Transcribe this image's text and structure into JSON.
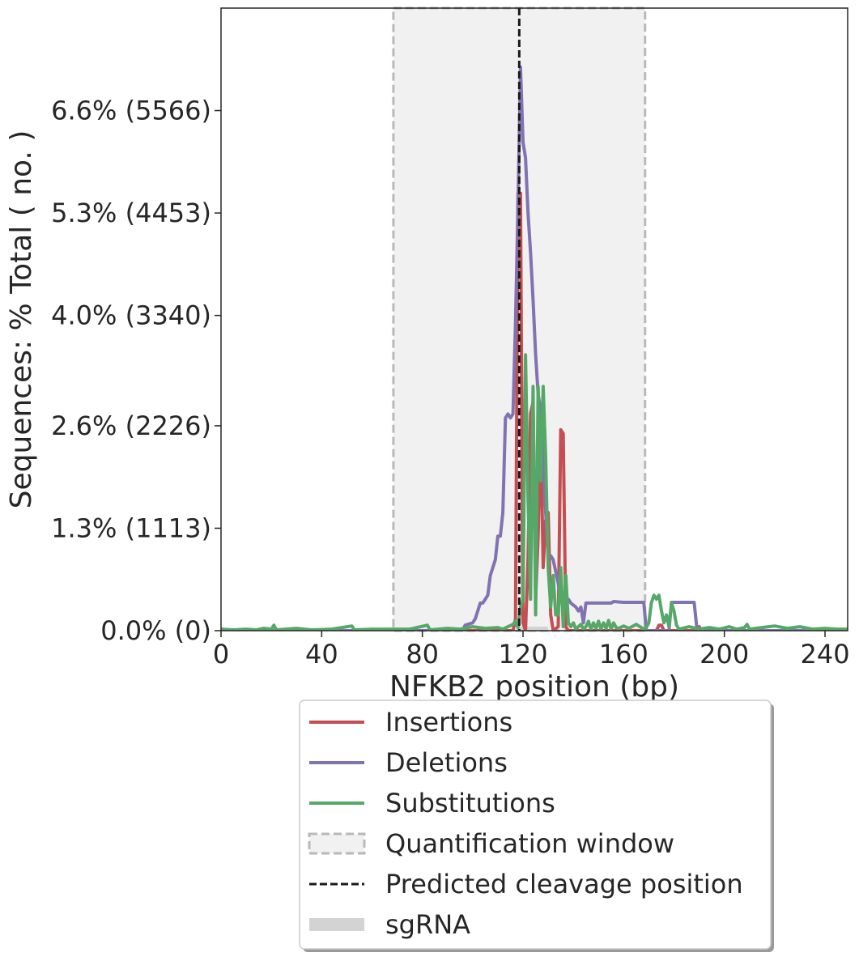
{
  "chart_data": {
    "type": "line",
    "xlabel": "NFKB2 position (bp)",
    "ylabel": "Sequences: % Total ( no. )",
    "xlim": [
      0,
      249
    ],
    "ylim": [
      0,
      7.9
    ],
    "x_ticks": [
      0,
      40,
      80,
      120,
      160,
      200,
      240
    ],
    "y_ticks": [
      {
        "value": 0.0,
        "label": "0.0% (0)"
      },
      {
        "value": 1.3,
        "label": "1.3% (1113)"
      },
      {
        "value": 2.6,
        "label": "2.6% (2226)"
      },
      {
        "value": 4.0,
        "label": "4.0% (3340)"
      },
      {
        "value": 5.3,
        "label": "5.3% (4453)"
      },
      {
        "value": 6.6,
        "label": "6.6% (5566)"
      }
    ],
    "quantification_window": [
      68.5,
      168.5
    ],
    "predicted_cleavage_position": 118.5,
    "sgrna": [
      118,
      130
    ],
    "legend_position": "below plot",
    "legend": [
      {
        "label": "Insertions",
        "kind": "line",
        "color": "#c44e52"
      },
      {
        "label": "Deletions",
        "kind": "line",
        "color": "#8172b2"
      },
      {
        "label": "Substitutions",
        "kind": "line",
        "color": "#55a868"
      },
      {
        "label": "Quantification window",
        "kind": "window"
      },
      {
        "label": "Predicted cleavage position",
        "kind": "dashed"
      },
      {
        "label": "sgRNA",
        "kind": "sgrna"
      }
    ],
    "series": [
      {
        "name": "Insertions",
        "color": "#c44e52",
        "points": [
          [
            0,
            0
          ],
          [
            116,
            0
          ],
          [
            117,
            0.15
          ],
          [
            118,
            5.55
          ],
          [
            119,
            5.55
          ],
          [
            120,
            0.1
          ],
          [
            121,
            0
          ],
          [
            122,
            0.9
          ],
          [
            123,
            2.75
          ],
          [
            124,
            2.9
          ],
          [
            125,
            0.4
          ],
          [
            126,
            1.2
          ],
          [
            127,
            2.6
          ],
          [
            128,
            0.8
          ],
          [
            129,
            1.4
          ],
          [
            130,
            1.5
          ],
          [
            131,
            0.2
          ],
          [
            132,
            0
          ],
          [
            134,
            0.05
          ],
          [
            135,
            2.55
          ],
          [
            136,
            2.5
          ],
          [
            137,
            0.05
          ],
          [
            138,
            0
          ],
          [
            173,
            0
          ],
          [
            174,
            0.07
          ],
          [
            175,
            0.07
          ],
          [
            176,
            0
          ],
          [
            189,
            0
          ],
          [
            190,
            0.05
          ],
          [
            191,
            0
          ],
          [
            249,
            0
          ]
        ]
      },
      {
        "name": "Deletions",
        "color": "#8172b2",
        "points": [
          [
            0,
            0
          ],
          [
            96,
            0
          ],
          [
            97,
            0.07
          ],
          [
            100,
            0.1
          ],
          [
            101,
            0.15
          ],
          [
            102,
            0.25
          ],
          [
            103,
            0.35
          ],
          [
            104,
            0.35
          ],
          [
            106,
            0.45
          ],
          [
            107,
            0.7
          ],
          [
            108,
            0.8
          ],
          [
            109,
            0.9
          ],
          [
            110,
            1.2
          ],
          [
            111,
            1.2
          ],
          [
            112,
            1.5
          ],
          [
            113,
            2.7
          ],
          [
            114,
            2.75
          ],
          [
            115,
            2.7
          ],
          [
            116,
            2.75
          ],
          [
            117,
            3.9
          ],
          [
            118,
            5.4
          ],
          [
            119,
            7.15
          ],
          [
            120,
            6.2
          ],
          [
            121,
            6.0
          ],
          [
            122,
            5.3
          ],
          [
            123,
            4.8
          ],
          [
            124,
            4.2
          ],
          [
            125,
            3.5
          ],
          [
            126,
            3.0
          ],
          [
            127,
            2.8
          ],
          [
            128,
            2.2
          ],
          [
            129,
            1.5
          ],
          [
            130,
            0.95
          ],
          [
            131,
            0.95
          ],
          [
            132,
            0.9
          ],
          [
            134,
            0.6
          ],
          [
            135,
            0.4
          ],
          [
            136,
            0.3
          ],
          [
            137,
            0.3
          ],
          [
            138,
            0.4
          ],
          [
            139,
            0.35
          ],
          [
            141,
            0.3
          ],
          [
            142,
            0.25
          ],
          [
            143,
            0.3
          ],
          [
            144,
            0.1
          ],
          [
            145,
            0.35
          ],
          [
            155,
            0.35
          ],
          [
            156,
            0.37
          ],
          [
            160,
            0.36
          ],
          [
            168,
            0.36
          ],
          [
            169,
            0
          ],
          [
            178,
            0
          ],
          [
            179,
            0.36
          ],
          [
            188,
            0.36
          ],
          [
            189,
            0.05
          ],
          [
            190,
            0
          ],
          [
            249,
            0
          ]
        ]
      },
      {
        "name": "Substitutions",
        "color": "#55a868",
        "points": [
          [
            0,
            0.02
          ],
          [
            5,
            0.01
          ],
          [
            10,
            0.02
          ],
          [
            14,
            0.01
          ],
          [
            17,
            0.03
          ],
          [
            20,
            0.02
          ],
          [
            21,
            0.07
          ],
          [
            22,
            0.01
          ],
          [
            30,
            0.03
          ],
          [
            36,
            0.01
          ],
          [
            44,
            0.02
          ],
          [
            52,
            0.06
          ],
          [
            53,
            0.01
          ],
          [
            60,
            0.02
          ],
          [
            75,
            0.02
          ],
          [
            82,
            0.07
          ],
          [
            83,
            0.01
          ],
          [
            90,
            0.03
          ],
          [
            95,
            0.02
          ],
          [
            100,
            0.05
          ],
          [
            105,
            0.03
          ],
          [
            110,
            0.04
          ],
          [
            112,
            0.02
          ],
          [
            114,
            0.05
          ],
          [
            116,
            0.08
          ],
          [
            117,
            0.12
          ],
          [
            118,
            0.04
          ],
          [
            119,
            0.3
          ],
          [
            120,
            0.4
          ],
          [
            121,
            3.5
          ],
          [
            122,
            1.7
          ],
          [
            123,
            0.4
          ],
          [
            124,
            3.1
          ],
          [
            125,
            0.2
          ],
          [
            126,
            3.1
          ],
          [
            127,
            1.9
          ],
          [
            128,
            3.1
          ],
          [
            129,
            2.2
          ],
          [
            130,
            0.8
          ],
          [
            131,
            0.3
          ],
          [
            132,
            0.7
          ],
          [
            133,
            0.2
          ],
          [
            134,
            0.2
          ],
          [
            135,
            0.8
          ],
          [
            136,
            0.05
          ],
          [
            137,
            0.7
          ],
          [
            138,
            0.1
          ],
          [
            139,
            0.05
          ],
          [
            140,
            0.1
          ],
          [
            141,
            0.02
          ],
          [
            142,
            0.05
          ],
          [
            143,
            0.08
          ],
          [
            144,
            0.02
          ],
          [
            145,
            0.05
          ],
          [
            146,
            0.12
          ],
          [
            147,
            0.02
          ],
          [
            148,
            0.1
          ],
          [
            149,
            0.03
          ],
          [
            150,
            0.12
          ],
          [
            151,
            0.02
          ],
          [
            152,
            0.1
          ],
          [
            153,
            0.03
          ],
          [
            154,
            0.13
          ],
          [
            155,
            0.02
          ],
          [
            156,
            0.1
          ],
          [
            157,
            0.04
          ],
          [
            158,
            0.03
          ],
          [
            160,
            0.06
          ],
          [
            162,
            0.03
          ],
          [
            165,
            0.08
          ],
          [
            168,
            0.02
          ],
          [
            169,
            0.04
          ],
          [
            170,
            0.1
          ],
          [
            171,
            0.35
          ],
          [
            172,
            0.45
          ],
          [
            173,
            0.4
          ],
          [
            174,
            0.45
          ],
          [
            175,
            0.25
          ],
          [
            176,
            0.1
          ],
          [
            177,
            0.2
          ],
          [
            178,
            0.05
          ],
          [
            179,
            0.35
          ],
          [
            180,
            0.25
          ],
          [
            181,
            0.07
          ],
          [
            182,
            0.02
          ],
          [
            186,
            0.05
          ],
          [
            190,
            0.02
          ],
          [
            194,
            0.04
          ],
          [
            198,
            0.02
          ],
          [
            202,
            0.05
          ],
          [
            205,
            0.02
          ],
          [
            208,
            0.04
          ],
          [
            209,
            0.08
          ],
          [
            210,
            0.02
          ],
          [
            215,
            0.04
          ],
          [
            220,
            0.06
          ],
          [
            225,
            0.03
          ],
          [
            230,
            0.05
          ],
          [
            235,
            0.02
          ],
          [
            240,
            0.03
          ],
          [
            245,
            0.02
          ],
          [
            249,
            0.02
          ]
        ]
      }
    ]
  }
}
